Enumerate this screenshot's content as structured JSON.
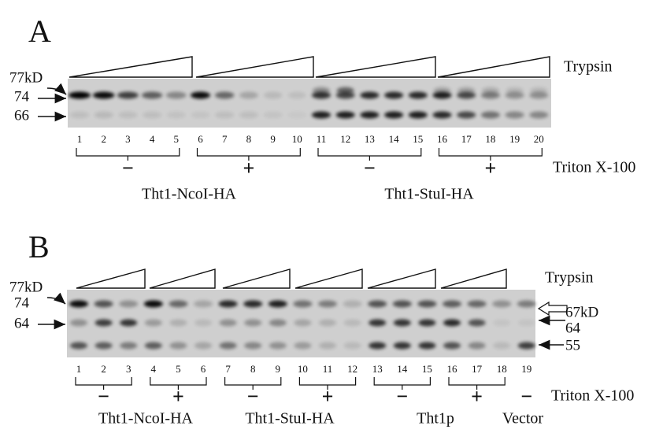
{
  "panels": [
    {
      "label": "A",
      "markers_left": [
        "77kD",
        "74",
        "66"
      ],
      "treatment": "Trypsin",
      "lanes": [
        "1",
        "2",
        "3",
        "4",
        "5",
        "6",
        "7",
        "8",
        "9",
        "10",
        "11",
        "12",
        "13",
        "14",
        "15",
        "16",
        "17",
        "18",
        "19",
        "20"
      ],
      "triton_signs": [
        "−",
        "+",
        "−",
        "+"
      ],
      "triton_label": "Triton X-100",
      "groups": [
        "Tht1-NcoI-HA",
        "Tht1-StuI-HA"
      ]
    },
    {
      "label": "B",
      "markers_left": [
        "77kD",
        "74",
        "64"
      ],
      "markers_right": [
        "67kD",
        "64",
        "55"
      ],
      "treatment": "Trypsin",
      "lanes": [
        "1",
        "2",
        "3",
        "4",
        "5",
        "6",
        "7",
        "8",
        "9",
        "10",
        "11",
        "12",
        "13",
        "14",
        "15",
        "16",
        "17",
        "18",
        "19"
      ],
      "triton_signs": [
        "−",
        "+",
        "−",
        "+",
        "−",
        "+",
        "−"
      ],
      "triton_label": "Triton X-100",
      "groups": [
        "Tht1-NcoI-HA",
        "Tht1-StuI-HA",
        "Tht1p",
        "Vector"
      ]
    }
  ]
}
